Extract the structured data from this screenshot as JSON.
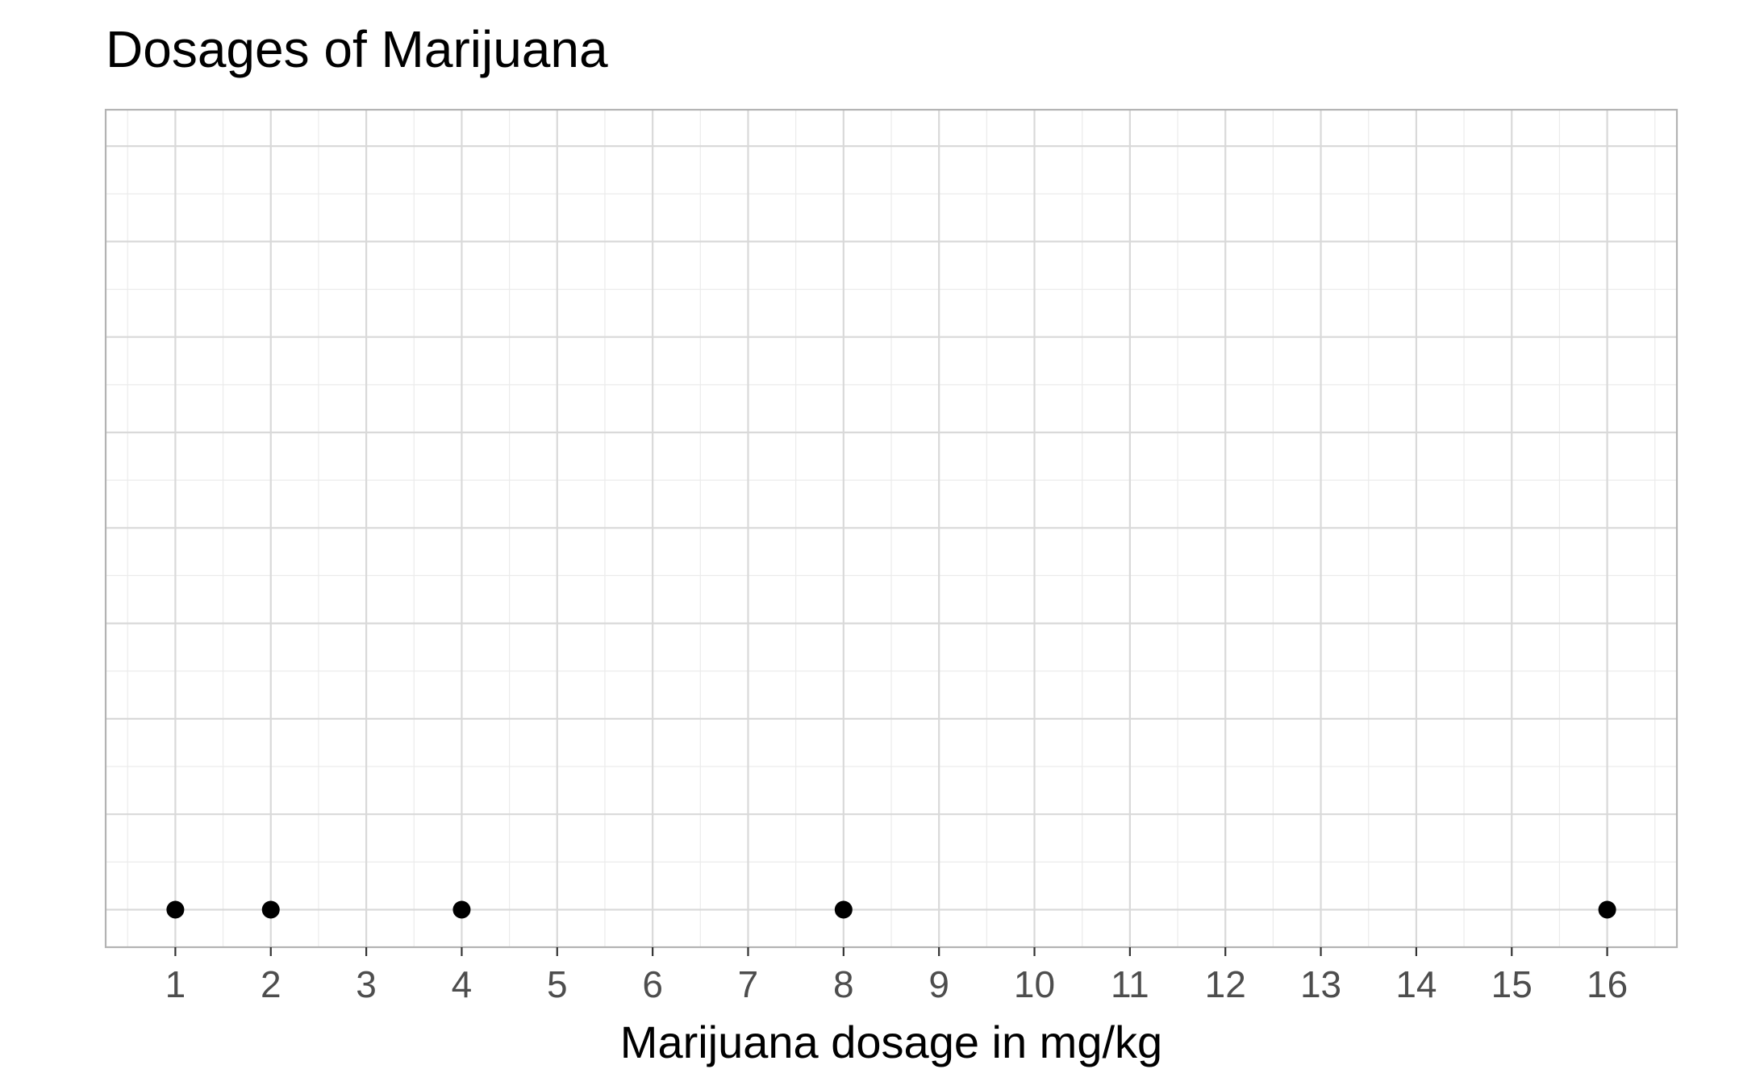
{
  "chart_data": {
    "type": "scatter",
    "title": "Dosages of Marijuana",
    "xlabel": "Marijuana dosage in mg/kg",
    "ylabel": "",
    "xlim": [
      0.27,
      16.73
    ],
    "x_ticks": [
      1,
      2,
      3,
      4,
      5,
      6,
      7,
      8,
      9,
      10,
      11,
      12,
      13,
      14,
      15,
      16
    ],
    "x_tick_labels": [
      "1",
      "2",
      "3",
      "4",
      "5",
      "6",
      "7",
      "8",
      "9",
      "10",
      "11",
      "12",
      "13",
      "14",
      "15",
      "16"
    ],
    "y_ticks_shown": false,
    "grid": true,
    "legend": "none",
    "series": [
      {
        "x": [
          1,
          2,
          4,
          8,
          16
        ],
        "y": [
          0,
          0,
          0,
          0,
          0
        ]
      }
    ],
    "colors": {
      "point": "#000000",
      "grid_major": "#d9d9d9",
      "grid_minor": "#ebebeb",
      "panel_border": "#b3b3b3",
      "tick_text": "#4d4d4d"
    }
  }
}
